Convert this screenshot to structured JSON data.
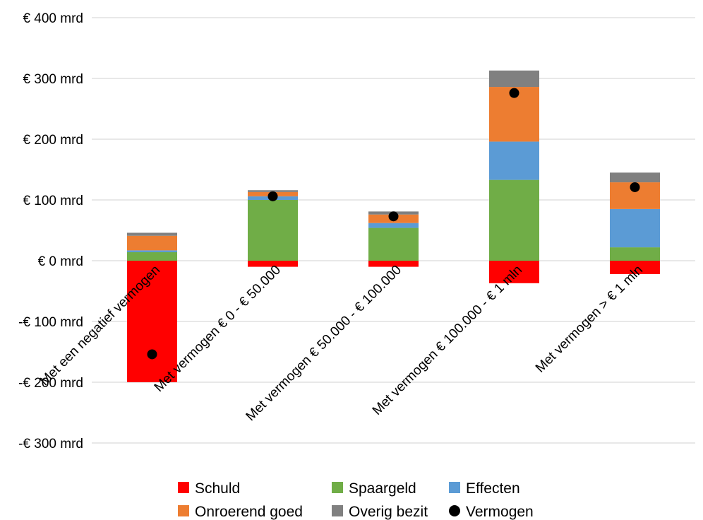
{
  "chart_data": {
    "type": "bar",
    "stacked": true,
    "categories": [
      "Met een negatief vermogen",
      "Met vermogen € 0 - € 50.000",
      "Met vermogen € 50.000 - € 100.000",
      "Met vermogen € 100.000 - € 1 mln",
      "Met vermogen > € 1 mln"
    ],
    "series": [
      {
        "name": "Schuld",
        "color": "#ff0000",
        "values": [
          -200,
          -10,
          -10,
          -37,
          -22
        ]
      },
      {
        "name": "Spaargeld",
        "color": "#70ad47",
        "values": [
          14,
          100,
          54,
          133,
          22
        ]
      },
      {
        "name": "Effecten",
        "color": "#5b9bd5",
        "values": [
          3,
          6,
          8,
          63,
          63
        ]
      },
      {
        "name": "Onroerend goed",
        "color": "#ed7d31",
        "values": [
          24,
          7,
          14,
          90,
          44
        ]
      },
      {
        "name": "Overig bezit",
        "color": "#808080",
        "values": [
          5,
          3,
          5,
          27,
          16
        ]
      }
    ],
    "markers": {
      "name": "Vermogen",
      "color": "#000000",
      "values": [
        -154,
        106,
        73,
        276,
        121
      ]
    },
    "ylim": [
      -300,
      400
    ],
    "yticks": [
      400,
      300,
      200,
      100,
      0,
      -100,
      -200,
      -300
    ],
    "ytick_labels": [
      "€ 400 mrd",
      "€ 300 mrd",
      "€ 200 mrd",
      "€ 100 mrd",
      "€ 0 mrd",
      "-€ 100 mrd",
      "-€ 200 mrd",
      "-€ 300 mrd"
    ],
    "grid": true,
    "legend_position": "bottom",
    "legend_order": [
      "Schuld",
      "Spaargeld",
      "Effecten",
      "Onroerend goed",
      "Overig bezit",
      "Vermogen"
    ]
  }
}
